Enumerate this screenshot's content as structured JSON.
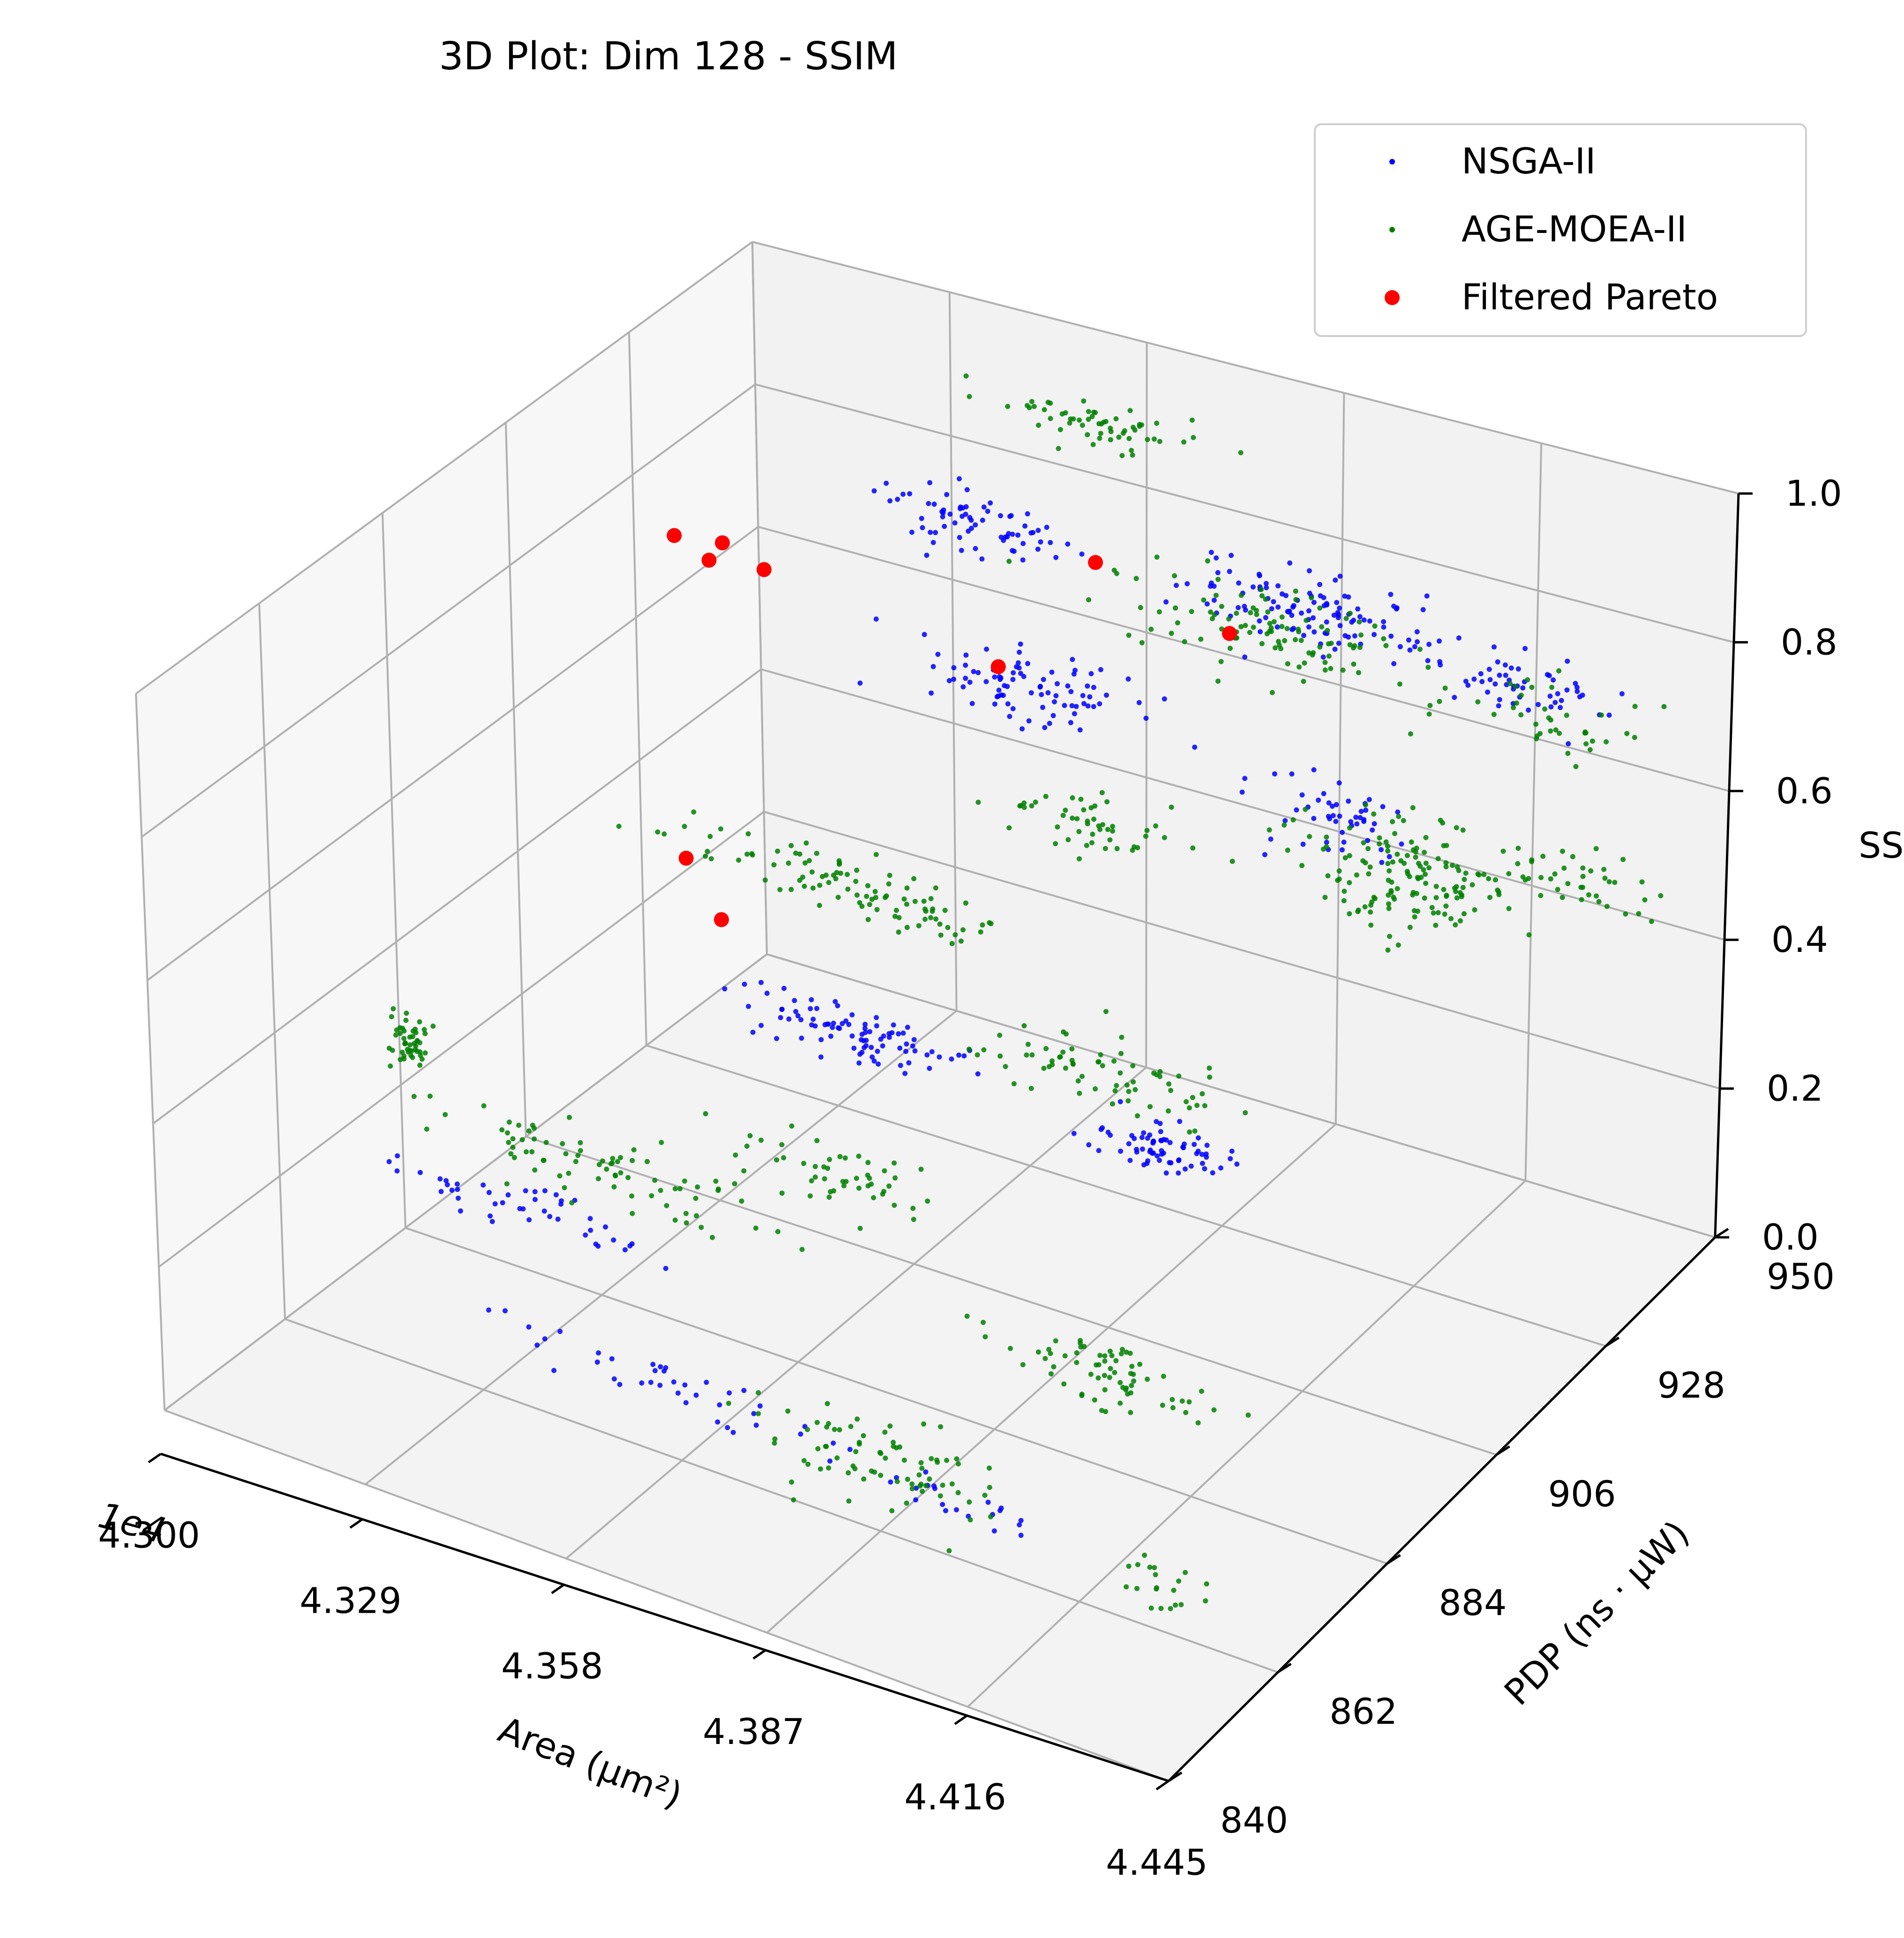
{
  "chart_data": {
    "type": "scatter",
    "projection": "3d",
    "title": "3D Plot: Dim 128 - SSIM",
    "xlabel": "Area (μm²)",
    "x_offset_label": "1e4",
    "ylabel": "PDP (ns · μW)",
    "zlabel": "SSIM",
    "xlim": [
      43000,
      44450
    ],
    "ylim": [
      840,
      950
    ],
    "zlim": [
      0.0,
      1.0
    ],
    "x_ticks": [
      "4.300",
      "4.329",
      "4.358",
      "4.387",
      "4.416",
      "4.445"
    ],
    "y_ticks": [
      "840",
      "862",
      "884",
      "906",
      "928",
      "950"
    ],
    "z_ticks": [
      "0.0",
      "0.2",
      "0.4",
      "0.6",
      "0.8",
      "1.0"
    ],
    "grid": true,
    "legend_position": "top-right",
    "series": [
      {
        "name": "NSGA-II",
        "color": "#0000ff",
        "marker": "small-dot",
        "clusters": [
          {
            "x": 43480,
            "y": 930,
            "z": 0.85,
            "n": 70,
            "spread": [
              140,
              4,
              0.03
            ]
          },
          {
            "x": 43980,
            "y": 930,
            "z": 0.86,
            "n": 110,
            "spread": [
              180,
              5,
              0.03
            ]
          },
          {
            "x": 44280,
            "y": 930,
            "z": 0.84,
            "n": 60,
            "spread": [
              150,
              4,
              0.03
            ]
          },
          {
            "x": 43750,
            "y": 905,
            "z": 0.86,
            "n": 90,
            "spread": [
              160,
              5,
              0.03
            ]
          },
          {
            "x": 44200,
            "y": 905,
            "z": 0.81,
            "n": 50,
            "spread": [
              110,
              4,
              0.03
            ]
          },
          {
            "x": 43700,
            "y": 880,
            "z": 0.52,
            "n": 90,
            "spread": [
              180,
              4,
              0.02
            ]
          },
          {
            "x": 44150,
            "y": 880,
            "z": 0.5,
            "n": 70,
            "spread": [
              90,
              4,
              0.02
            ]
          },
          {
            "x": 43700,
            "y": 845,
            "z": 0.25,
            "n": 40,
            "spread": [
              250,
              3,
              0.03
            ]
          },
          {
            "x": 44100,
            "y": 845,
            "z": 0.23,
            "n": 20,
            "spread": [
              120,
              3,
              0.03
            ]
          },
          {
            "x": 43350,
            "y": 862,
            "z": 0.28,
            "n": 45,
            "spread": [
              200,
              3,
              0.02
            ]
          }
        ]
      },
      {
        "name": "AGE-MOEA-II",
        "color": "#008000",
        "marker": "small-dot",
        "clusters": [
          {
            "x": 43600,
            "y": 940,
            "z": 0.95,
            "n": 60,
            "spread": [
              140,
              3,
              0.02
            ]
          },
          {
            "x": 43950,
            "y": 925,
            "z": 0.86,
            "n": 110,
            "spread": [
              200,
              5,
              0.04
            ]
          },
          {
            "x": 44350,
            "y": 930,
            "z": 0.8,
            "n": 40,
            "spread": [
              140,
              4,
              0.04
            ]
          },
          {
            "x": 43900,
            "y": 900,
            "z": 0.73,
            "n": 50,
            "spread": [
              150,
              4,
              0.03
            ]
          },
          {
            "x": 44200,
            "y": 920,
            "z": 0.62,
            "n": 150,
            "spread": [
              130,
              6,
              0.06
            ]
          },
          {
            "x": 44350,
            "y": 935,
            "z": 0.55,
            "n": 40,
            "spread": [
              110,
              4,
              0.05
            ]
          },
          {
            "x": 43550,
            "y": 900,
            "z": 0.55,
            "n": 100,
            "spread": [
              260,
              4,
              0.03
            ]
          },
          {
            "x": 43950,
            "y": 895,
            "z": 0.45,
            "n": 70,
            "spread": [
              180,
              5,
              0.03
            ]
          },
          {
            "x": 43750,
            "y": 870,
            "z": 0.4,
            "n": 50,
            "spread": [
              160,
              4,
              0.04
            ]
          },
          {
            "x": 43400,
            "y": 870,
            "z": 0.3,
            "n": 80,
            "spread": [
              220,
              4,
              0.03
            ]
          },
          {
            "x": 44150,
            "y": 870,
            "z": 0.25,
            "n": 70,
            "spread": [
              150,
              4,
              0.03
            ]
          },
          {
            "x": 43950,
            "y": 850,
            "z": 0.2,
            "n": 80,
            "spread": [
              180,
              5,
              0.05
            ]
          },
          {
            "x": 43050,
            "y": 880,
            "z": 0.3,
            "n": 50,
            "spread": [
              25,
              3,
              0.04
            ]
          },
          {
            "x": 44300,
            "y": 860,
            "z": 0.08,
            "n": 20,
            "spread": [
              60,
              3,
              0.02
            ]
          }
        ]
      },
      {
        "name": "Filtered Pareto",
        "color": "#ff0000",
        "marker": "large-dot",
        "points": [
          {
            "x": 43250,
            "y": 905,
            "z": 0.92
          },
          {
            "x": 43300,
            "y": 905,
            "z": 0.9
          },
          {
            "x": 43320,
            "y": 905,
            "z": 0.93
          },
          {
            "x": 43380,
            "y": 905,
            "z": 0.91
          },
          {
            "x": 43680,
            "y": 928,
            "z": 0.86
          },
          {
            "x": 43680,
            "y": 910,
            "z": 0.83
          },
          {
            "x": 43900,
            "y": 925,
            "z": 0.84
          },
          {
            "x": 43380,
            "y": 890,
            "z": 0.6
          },
          {
            "x": 43430,
            "y": 890,
            "z": 0.53
          }
        ]
      }
    ]
  }
}
